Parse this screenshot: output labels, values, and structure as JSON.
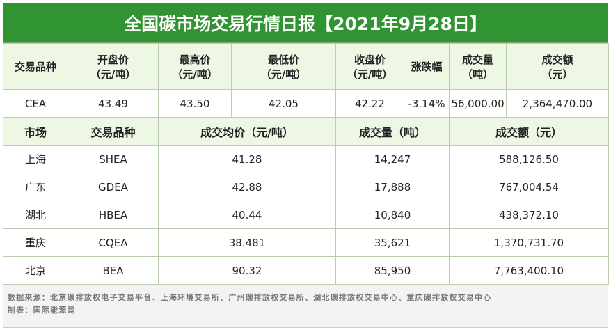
{
  "title": "全国碳市场交易行情日报【2021年9月28日】",
  "table1": {
    "header": [
      [
        "交易品种"
      ],
      [
        "开盘价",
        "（元/吨）"
      ],
      [
        "最高价",
        "（元/吨）"
      ],
      [
        "最低价",
        "（元/吨）"
      ],
      [
        "收盘价",
        "（元/吨）"
      ],
      [
        "涨跌幅"
      ],
      [
        "成交量",
        "（吨）"
      ],
      [
        "成交额",
        "（元）"
      ]
    ],
    "rows": [
      [
        "CEA",
        "43.49",
        "43.50",
        "42.05",
        "42.22",
        "-3.14%",
        "56,000.00",
        "2,364,470.00"
      ]
    ]
  },
  "table2": {
    "header": [
      "市场",
      "交易品种",
      "成交均价（元/吨）",
      "成交量（吨）",
      "成交额（元）"
    ],
    "rows": [
      [
        "上海",
        "SHEA",
        "41.28",
        "14,247",
        "588,126.50"
      ],
      [
        "广东",
        "GDEA",
        "42.88",
        "17,888",
        "767,004.54"
      ],
      [
        "湖北",
        "HBEA",
        "40.44",
        "10,840",
        "438,372.10"
      ],
      [
        "重庆",
        "CQEA",
        "38.481",
        "35,621",
        "1,370,731.70"
      ],
      [
        "北京",
        "BEA",
        "90.32",
        "85,950",
        "7,763,400.10"
      ]
    ]
  },
  "footer": {
    "source": "数据来源：北京碳排放权电子交易平台、上海环境交易所、广州碳排放权交易所、湖北碳排放权交易中心、重庆碳排放权交易中心",
    "credit": "制表：国际能源网"
  }
}
